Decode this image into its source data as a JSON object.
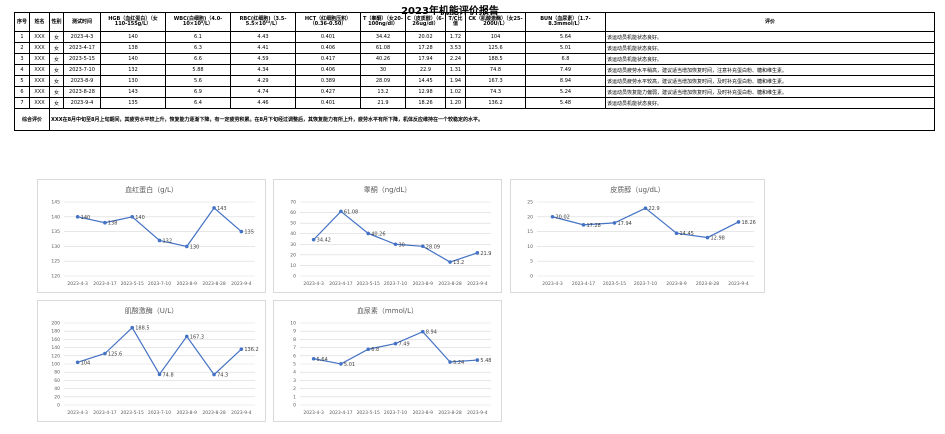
{
  "report": {
    "title": "2023年机能评价报告",
    "headers": [
      "序号",
      "姓名",
      "性别",
      "测试时间",
      "HGB（血红蛋白）（女110-155g/L）",
      "WBC(白细胞)（4.0-10×10⁹/L）",
      "RBC(红细胞)（3.5-5.5×10¹²/L）",
      "HCT（红细胞压积）（0.36-0.50）",
      "T（睾酮）（女20-100ng/dl）",
      "C（皮质醇）（6-26ug/dl）",
      "T/C比值",
      "CK（肌酸激酶）（女25-200U/L）",
      "BUN（血尿素）（1.7-8.3mmol/L）",
      "评价"
    ],
    "rows": [
      [
        "1",
        "XXX",
        "女",
        "2023-4-3",
        "140",
        "6.1",
        "4.43",
        "0.401",
        "34.42",
        "20.02",
        "1.72",
        "104",
        "5.64",
        "该运动员机能状态良好。"
      ],
      [
        "2",
        "XXX",
        "女",
        "2023-4-17",
        "138",
        "6.3",
        "4.41",
        "0.406",
        "61.08",
        "17.28",
        "3.53",
        "125.6",
        "5.01",
        "该运动员机能状态良好。"
      ],
      [
        "3",
        "XXX",
        "女",
        "2023-5-15",
        "140",
        "6.6",
        "4.59",
        "0.417",
        "40.26",
        "17.94",
        "2.24",
        "188.5",
        "6.8",
        "该运动员机能状态良好。"
      ],
      [
        "4",
        "XXX",
        "女",
        "2023-7-10",
        "132",
        "5.88",
        "4.34",
        "0.406",
        "30",
        "22.9",
        "1.31",
        "74.8",
        "7.49",
        "该运动员疲劳水平稍高，建议适当增加恢复时间，注意补充蛋白粉、糖和维生素。"
      ],
      [
        "5",
        "XXX",
        "女",
        "2023-8-9",
        "130",
        "5.6",
        "4.29",
        "0.389",
        "28.09",
        "14.45",
        "1.94",
        "167.3",
        "8.94",
        "该运动员疲劳水平较高，建议适当增加恢复时间，及时补充蛋白粉、糖和维生素。"
      ],
      [
        "6",
        "XXX",
        "女",
        "2023-8-28",
        "143",
        "6.9",
        "4.74",
        "0.427",
        "13.2",
        "12.98",
        "1.02",
        "74.3",
        "5.24",
        "该运动员恢复能力偏弱，建议适当增加恢复时间，及时补充蛋白粉、糖和维生素。"
      ],
      [
        "7",
        "XXX",
        "女",
        "2023-9-4",
        "135",
        "6.4",
        "4.46",
        "0.401",
        "21.9",
        "18.26",
        "1.20",
        "136.2",
        "5.48",
        "该运动员机能状态良好。"
      ]
    ],
    "summary_label": "综合评价",
    "summary_text": "XXX在8月中旬至8月上旬期间，其疲劳水平较上升，恢复能力逐渐下降，有一定疲劳积累。在8月下旬经过调整后，其恢复能力有所上升，疲劳水平有所下降，机体反应维持在一个较稳定的水平。"
  },
  "chart_data": [
    {
      "type": "line",
      "title": "血红蛋白（g/L）",
      "categories": [
        "2023-4-3",
        "2023-4-17",
        "2023-5-15",
        "2023-7-10",
        "2023-8-9",
        "2023-8-28",
        "2023-9-4"
      ],
      "values": [
        140,
        138,
        140,
        132,
        130,
        143,
        135
      ],
      "ylim": [
        120,
        145
      ],
      "yticks": [
        120,
        125,
        130,
        135,
        140,
        145
      ],
      "ylabel": "",
      "xlabel": "",
      "grid": true
    },
    {
      "type": "line",
      "title": "睾酮（ng/dL）",
      "categories": [
        "2023-4-3",
        "2023-4-17",
        "2023-5-15",
        "2023-7-10",
        "2023-8-9",
        "2023-8-28",
        "2023-9-4"
      ],
      "values": [
        34.42,
        61.08,
        40.26,
        30,
        28.09,
        13.2,
        21.9
      ],
      "ylim": [
        0,
        70
      ],
      "yticks": [
        0,
        10,
        20,
        30,
        40,
        50,
        60,
        70
      ],
      "ylabel": "",
      "xlabel": "",
      "grid": true
    },
    {
      "type": "line",
      "title": "皮质醇（ug/dL）",
      "categories": [
        "2023-4-3",
        "2023-4-17",
        "2023-5-15",
        "2023-7-10",
        "2023-8-9",
        "2023-8-28",
        "2023-9-4"
      ],
      "values": [
        20.02,
        17.28,
        17.94,
        22.9,
        14.45,
        12.98,
        18.26
      ],
      "ylim": [
        0,
        25
      ],
      "yticks": [
        0,
        5,
        10,
        15,
        20,
        25
      ],
      "ylabel": "",
      "xlabel": "",
      "grid": true
    },
    {
      "type": "line",
      "title": "肌酸激酶（U/L）",
      "categories": [
        "2023-4-3",
        "2023-4-17",
        "2023-5-15",
        "2023-7-10",
        "2023-8-9",
        "2023-8-28",
        "2023-9-4"
      ],
      "values": [
        104,
        125.6,
        188.5,
        74.8,
        167.3,
        74.3,
        136.2
      ],
      "ylim": [
        0,
        200
      ],
      "yticks": [
        0,
        20,
        40,
        60,
        80,
        100,
        120,
        140,
        160,
        180,
        200
      ],
      "ylabel": "",
      "xlabel": "",
      "grid": true
    },
    {
      "type": "line",
      "title": "血尿素（mmol/L）",
      "categories": [
        "2023-4-3",
        "2023-4-17",
        "2023-5-15",
        "2023-7-10",
        "2023-8-9",
        "2023-8-28",
        "2023-9-4"
      ],
      "values": [
        5.64,
        5.01,
        6.8,
        7.49,
        8.94,
        5.24,
        5.48
      ],
      "ylim": [
        0,
        10
      ],
      "yticks": [
        0,
        1,
        2,
        3,
        4,
        5,
        6,
        7,
        8,
        9,
        10
      ],
      "ylabel": "",
      "xlabel": "",
      "grid": true
    }
  ],
  "colors": {
    "line": "#4472c4",
    "grid": "#d9d9d9",
    "border": "#000000"
  }
}
